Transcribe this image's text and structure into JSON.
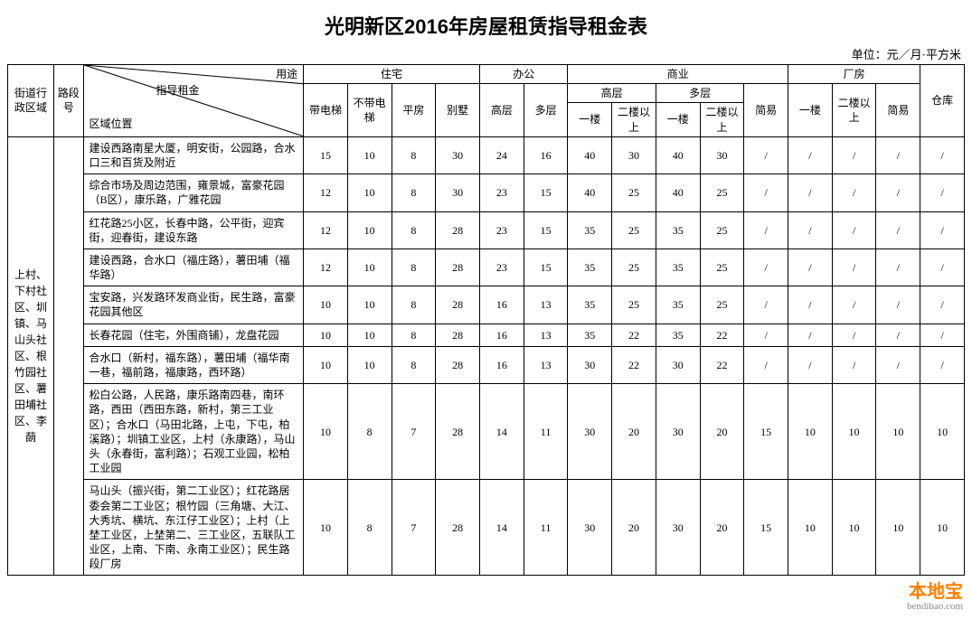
{
  "title": "光明新区2016年房屋租赁指导租金表",
  "unit_label": "单位：元／月·平方米",
  "watermark": {
    "brand": "本地宝",
    "url": "bendibao.com"
  },
  "header": {
    "col_region": "街道行政区域",
    "col_segment": "路段号",
    "diag": {
      "usage": "用途",
      "guide": "指导租金",
      "location": "区域位置"
    },
    "groups": {
      "residential": "住宅",
      "office": "办公",
      "commercial": "商业",
      "factory": "厂房",
      "warehouse": "仓库"
    },
    "sub": {
      "with_elevator": "带电梯",
      "no_elevator": "不带电梯",
      "pingfang": "平房",
      "bieshu": "别墅",
      "gaoceng": "高层",
      "duoceng": "多层",
      "comm_gaoceng": "高层",
      "comm_duoceng": "多层",
      "jianyi": "简易",
      "floor1": "一楼",
      "floor2up": "二楼以上"
    }
  },
  "region_label": "上村、下村社区、圳镇、马山头社区、根竹园社区、薯田埔社区、李蓢",
  "rows": [
    {
      "loc": "建设西路南星大厦，明安街，公园路，合水口三和百货及附近",
      "v": [
        "15",
        "10",
        "8",
        "30",
        "24",
        "16",
        "40",
        "30",
        "40",
        "30",
        "/",
        "/",
        "/",
        "/",
        "/"
      ]
    },
    {
      "loc": "综合市场及周边范围，雍景城，富豪花园（B区），康乐路，广雅花园",
      "v": [
        "12",
        "10",
        "8",
        "30",
        "23",
        "15",
        "40",
        "25",
        "40",
        "25",
        "/",
        "/",
        "/",
        "/",
        "/"
      ]
    },
    {
      "loc": "红花路25小区，长春中路，公平街，迎宾街，迎春街，建设东路",
      "v": [
        "12",
        "10",
        "8",
        "28",
        "23",
        "15",
        "35",
        "25",
        "35",
        "25",
        "/",
        "/",
        "/",
        "/",
        "/"
      ]
    },
    {
      "loc": "建设西路，合水口（福庄路），薯田埔（福华路）",
      "v": [
        "12",
        "10",
        "8",
        "28",
        "23",
        "15",
        "35",
        "25",
        "35",
        "25",
        "/",
        "/",
        "/",
        "/",
        "/"
      ]
    },
    {
      "loc": "宝安路，兴发路环发商业街，民生路，富豪花园其他区",
      "v": [
        "10",
        "10",
        "8",
        "28",
        "16",
        "13",
        "35",
        "25",
        "35",
        "25",
        "/",
        "/",
        "/",
        "/",
        "/"
      ]
    },
    {
      "loc": "长春花园（住宅，外围商铺），龙盘花园",
      "v": [
        "10",
        "10",
        "8",
        "28",
        "16",
        "13",
        "35",
        "22",
        "35",
        "22",
        "/",
        "/",
        "/",
        "/",
        "/"
      ]
    },
    {
      "loc": "合水口（新村，福东路），薯田埔（福华南一巷，福前路，福康路，西环路）",
      "v": [
        "10",
        "10",
        "8",
        "28",
        "16",
        "13",
        "30",
        "22",
        "30",
        "22",
        "/",
        "/",
        "/",
        "/",
        "/"
      ]
    },
    {
      "loc": "松白公路，人民路，康乐路南四巷，南环路，西田（西田东路，新村，第三工业区）；合水口（马田北路，上屯，下屯，柏溪路）；圳镇工业区，上村（永康路），马山头（永春街，富利路）；石观工业园，松柏工业园",
      "v": [
        "10",
        "8",
        "7",
        "28",
        "14",
        "11",
        "30",
        "20",
        "30",
        "20",
        "15",
        "10",
        "10",
        "10",
        "10"
      ]
    },
    {
      "loc": "马山头（振兴街，第二工业区）；红花路居委会第二工业区；根竹园（三角塘、大江、大秀坑、横坑、东江仔工业区）；上村（上埜工业区，上埜第二、三工业区，五联队工业区，上南、下南、永南工业区）；民生路段厂房",
      "v": [
        "10",
        "8",
        "7",
        "28",
        "14",
        "11",
        "30",
        "20",
        "30",
        "20",
        "15",
        "10",
        "10",
        "10",
        "10"
      ]
    }
  ]
}
